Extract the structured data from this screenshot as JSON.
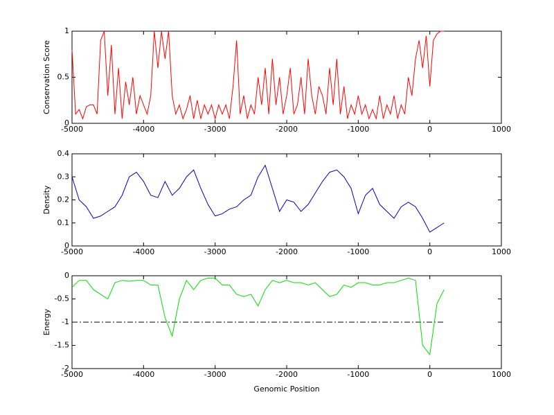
{
  "chart_data": [
    {
      "type": "line",
      "ylabel": "Conservation Score",
      "color": "#ff0000",
      "xlim": [
        -5000,
        1000
      ],
      "xticks": [
        -5000,
        -4000,
        -3000,
        -2000,
        -1000,
        0,
        1000
      ],
      "ylim": [
        0,
        1
      ],
      "yticks": [
        0,
        0.5,
        1
      ],
      "x": [
        -5000,
        -4950,
        -4900,
        -4850,
        -4800,
        -4750,
        -4700,
        -4650,
        -4600,
        -4550,
        -4500,
        -4450,
        -4400,
        -4350,
        -4300,
        -4250,
        -4200,
        -4150,
        -4100,
        -4050,
        -4000,
        -3950,
        -3900,
        -3850,
        -3800,
        -3750,
        -3700,
        -3650,
        -3600,
        -3550,
        -3500,
        -3450,
        -3400,
        -3350,
        -3300,
        -3250,
        -3200,
        -3150,
        -3100,
        -3050,
        -3000,
        -2950,
        -2900,
        -2850,
        -2800,
        -2750,
        -2700,
        -2650,
        -2600,
        -2550,
        -2500,
        -2450,
        -2400,
        -2350,
        -2300,
        -2250,
        -2200,
        -2150,
        -2100,
        -2050,
        -2000,
        -1950,
        -1900,
        -1850,
        -1800,
        -1750,
        -1700,
        -1650,
        -1600,
        -1550,
        -1500,
        -1450,
        -1400,
        -1350,
        -1300,
        -1250,
        -1200,
        -1150,
        -1100,
        -1050,
        -1000,
        -950,
        -900,
        -850,
        -800,
        -750,
        -700,
        -650,
        -600,
        -550,
        -500,
        -450,
        -400,
        -350,
        -300,
        -250,
        -200,
        -150,
        -100,
        -50,
        0,
        50,
        100,
        150,
        200
      ],
      "values": [
        0.8,
        0.1,
        0.15,
        0.05,
        0.18,
        0.2,
        0.2,
        0.1,
        0.9,
        1.0,
        0.3,
        0.85,
        0.1,
        0.6,
        0.05,
        0.45,
        0.2,
        0.5,
        0.1,
        0.3,
        0.2,
        0.1,
        0.3,
        1.0,
        0.6,
        1.0,
        0.7,
        1.0,
        0.3,
        0.1,
        0.2,
        0.05,
        0.15,
        0.3,
        0.05,
        0.25,
        0.05,
        0.2,
        0.1,
        0.2,
        0.05,
        0.2,
        0.1,
        0.2,
        0.05,
        0.4,
        0.9,
        0.1,
        0.3,
        0.05,
        0.2,
        0.1,
        0.5,
        0.2,
        0.6,
        0.1,
        0.7,
        0.2,
        0.5,
        0.1,
        0.3,
        0.6,
        0.1,
        0.2,
        0.5,
        0.1,
        0.7,
        0.3,
        0.1,
        0.4,
        0.3,
        0.1,
        0.6,
        0.2,
        0.7,
        0.1,
        0.4,
        0.05,
        0.2,
        0.1,
        0.3,
        0.1,
        0.2,
        0.05,
        0.15,
        0.05,
        0.3,
        0.05,
        0.2,
        0.1,
        0.3,
        0.05,
        0.2,
        0.1,
        0.5,
        0.3,
        0.7,
        0.9,
        0.6,
        0.95,
        0.4,
        0.9,
        0.97,
        1.0,
        1.0
      ]
    },
    {
      "type": "line",
      "ylabel": "Density",
      "color": "#0000c0",
      "xlim": [
        -5000,
        1000
      ],
      "xticks": [
        -5000,
        -4000,
        -3000,
        -2000,
        -1000,
        0,
        1000
      ],
      "ylim": [
        0,
        0.4
      ],
      "yticks": [
        0,
        0.1,
        0.2,
        0.3,
        0.4
      ],
      "x": [
        -5000,
        -4900,
        -4800,
        -4700,
        -4600,
        -4500,
        -4400,
        -4300,
        -4200,
        -4100,
        -4000,
        -3900,
        -3800,
        -3700,
        -3600,
        -3500,
        -3400,
        -3300,
        -3200,
        -3100,
        -3000,
        -2900,
        -2800,
        -2700,
        -2600,
        -2500,
        -2400,
        -2300,
        -2200,
        -2100,
        -2000,
        -1900,
        -1800,
        -1700,
        -1600,
        -1500,
        -1400,
        -1300,
        -1200,
        -1100,
        -1000,
        -900,
        -800,
        -700,
        -600,
        -500,
        -400,
        -300,
        -200,
        -100,
        0,
        100,
        200
      ],
      "values": [
        0.3,
        0.2,
        0.17,
        0.12,
        0.13,
        0.15,
        0.17,
        0.22,
        0.3,
        0.32,
        0.28,
        0.22,
        0.21,
        0.28,
        0.22,
        0.25,
        0.3,
        0.33,
        0.25,
        0.18,
        0.13,
        0.14,
        0.16,
        0.17,
        0.2,
        0.22,
        0.3,
        0.35,
        0.25,
        0.15,
        0.2,
        0.19,
        0.15,
        0.18,
        0.23,
        0.28,
        0.32,
        0.33,
        0.3,
        0.25,
        0.14,
        0.22,
        0.25,
        0.18,
        0.15,
        0.12,
        0.17,
        0.19,
        0.17,
        0.12,
        0.06,
        0.08,
        0.1
      ]
    },
    {
      "type": "line",
      "ylabel": "Energy",
      "xlabel": "Genomic Position",
      "color": "#00e000",
      "xlim": [
        -5000,
        1000
      ],
      "xticks": [
        -5000,
        -4000,
        -3000,
        -2000,
        -1000,
        0,
        1000
      ],
      "ylim": [
        -2,
        0
      ],
      "yticks": [
        -2,
        -1.5,
        -1,
        -0.5,
        0
      ],
      "x": [
        -5000,
        -4900,
        -4800,
        -4700,
        -4600,
        -4500,
        -4400,
        -4300,
        -4200,
        -4100,
        -4000,
        -3900,
        -3800,
        -3700,
        -3600,
        -3500,
        -3400,
        -3300,
        -3200,
        -3100,
        -3000,
        -2900,
        -2800,
        -2700,
        -2600,
        -2500,
        -2400,
        -2300,
        -2200,
        -2100,
        -2000,
        -1900,
        -1800,
        -1700,
        -1600,
        -1500,
        -1400,
        -1300,
        -1200,
        -1100,
        -1000,
        -900,
        -800,
        -700,
        -600,
        -500,
        -400,
        -300,
        -200,
        -100,
        0,
        100,
        200
      ],
      "values": [
        -0.25,
        -0.1,
        -0.1,
        -0.3,
        -0.4,
        -0.5,
        -0.15,
        -0.1,
        -0.12,
        -0.1,
        -0.1,
        -0.2,
        -0.2,
        -0.9,
        -1.3,
        -0.5,
        -0.1,
        -0.3,
        -0.1,
        -0.05,
        -0.05,
        -0.2,
        -0.2,
        -0.4,
        -0.45,
        -0.4,
        -0.65,
        -0.3,
        -0.1,
        -0.15,
        -0.1,
        -0.15,
        -0.15,
        -0.2,
        -0.15,
        -0.3,
        -0.45,
        -0.4,
        -0.2,
        -0.25,
        -0.15,
        -0.15,
        -0.2,
        -0.2,
        -0.15,
        -0.15,
        -0.1,
        -0.05,
        -0.1,
        -1.5,
        -1.7,
        -0.6,
        -0.3
      ],
      "reference_line": {
        "y": -1,
        "x": [
          -5000,
          200
        ],
        "color": "#000000"
      }
    }
  ]
}
